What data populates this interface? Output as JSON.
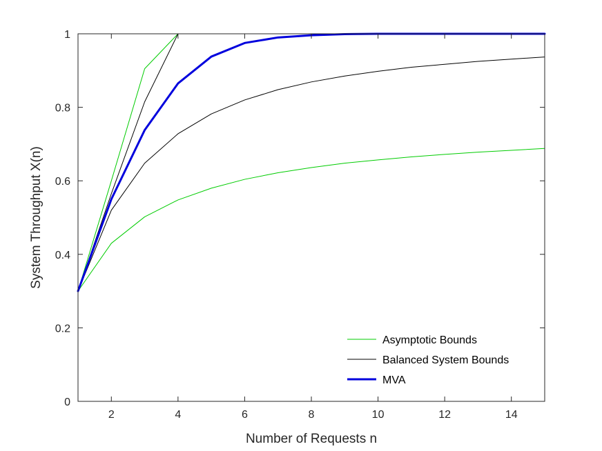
{
  "chart_data": {
    "type": "line",
    "xlabel": "Number of Requests n",
    "ylabel": "System Throughput X(n)",
    "xlim": [
      1,
      15
    ],
    "ylim": [
      0,
      1
    ],
    "xticks": [
      2,
      4,
      6,
      8,
      10,
      12,
      14
    ],
    "yticks": [
      0,
      0.2,
      0.4,
      0.6,
      0.8,
      1
    ],
    "ytick_labels": [
      "0",
      "0.2",
      "0.4",
      "0.6",
      "0.8",
      "1"
    ],
    "grid": false,
    "legend_position": "bottom-right",
    "x": [
      1,
      2,
      3,
      4,
      5,
      6,
      7,
      8,
      9,
      10,
      11,
      12,
      13,
      14,
      15
    ],
    "series": [
      {
        "name": "Asymptotic Bounds",
        "color": "#00cc00",
        "width": 1,
        "legend": true,
        "values": [
          0.3,
          0.6,
          0.905,
          1.0,
          1.0,
          1.0,
          1.0,
          1.0,
          1.0,
          1.0,
          1.0,
          1.0,
          1.0,
          1.0,
          1.0
        ]
      },
      {
        "name": "",
        "color": "#00cc00",
        "width": 1,
        "legend": false,
        "values": [
          0.3,
          0.43,
          0.502,
          0.548,
          0.58,
          0.604,
          0.622,
          0.636,
          0.648,
          0.657,
          0.665,
          0.672,
          0.678,
          0.683,
          0.688
        ]
      },
      {
        "name": "Balanced System Bounds",
        "color": "#000000",
        "width": 1,
        "legend": true,
        "values": [
          0.3,
          0.52,
          0.648,
          0.728,
          0.782,
          0.82,
          0.848,
          0.869,
          0.885,
          0.898,
          0.909,
          0.917,
          0.925,
          0.931,
          0.937
        ]
      },
      {
        "name": "",
        "color": "#000000",
        "width": 1,
        "legend": false,
        "values": [
          0.3,
          0.565,
          0.815,
          1.0,
          1.0,
          1.0,
          1.0,
          1.0,
          1.0,
          1.0,
          1.0,
          1.0,
          1.0,
          1.0,
          1.0
        ]
      },
      {
        "name": "MVA",
        "color": "#0000dd",
        "width": 3,
        "legend": true,
        "values": [
          0.3,
          0.55,
          0.738,
          0.865,
          0.938,
          0.975,
          0.99,
          0.996,
          0.999,
          1.0,
          1.0,
          1.0,
          1.0,
          1.0,
          1.0
        ]
      }
    ]
  }
}
